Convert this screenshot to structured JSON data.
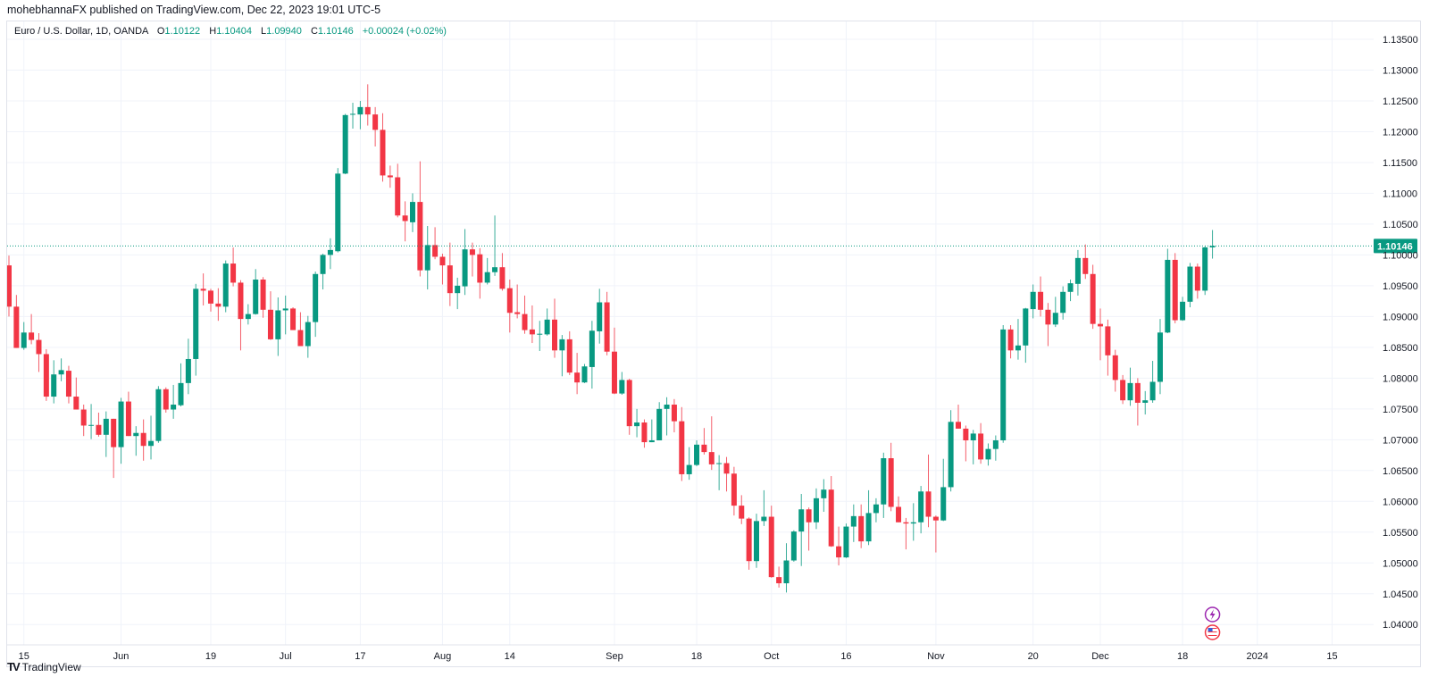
{
  "header": {
    "publish_line": "mohebhannaFX published on TradingView.com, Dec 22, 2023 19:01 UTC-5"
  },
  "legend": {
    "symbol": "Euro / U.S. Dollar, 1D, OANDA",
    "open_key": "O",
    "open": "1.10122",
    "high_key": "H",
    "high": "1.10404",
    "low_key": "L",
    "low": "1.09940",
    "close_key": "C",
    "close": "1.10146",
    "change": "+0.00024 (+0.02%)"
  },
  "brand": {
    "mark": "TV",
    "name": "TradingView"
  },
  "colors": {
    "up": "#089981",
    "down": "#F23645",
    "grid": "#f0f3fa",
    "event_purple": "#9c27b0",
    "event_flag": "#f23645"
  },
  "events": [
    {
      "icon": "lightning-icon"
    },
    {
      "icon": "us-flag-icon"
    }
  ],
  "chart_data": {
    "type": "candlestick",
    "symbol": "EURUSD",
    "interval": "1D",
    "grid": true,
    "ylim": [
      1.0367,
      1.1379
    ],
    "last_price": "1.10146",
    "yticks": [
      "1.13500",
      "1.13000",
      "1.12500",
      "1.12000",
      "1.11500",
      "1.11000",
      "1.10500",
      "1.10000",
      "1.09500",
      "1.09000",
      "1.08500",
      "1.08000",
      "1.07500",
      "1.07000",
      "1.06500",
      "1.06000",
      "1.05500",
      "1.05000",
      "1.04500",
      "1.04000"
    ],
    "xticks": [
      {
        "label": "15",
        "date": "2023-05-15"
      },
      {
        "label": "Jun",
        "date": "2023-06-01"
      },
      {
        "label": "19",
        "date": "2023-06-19"
      },
      {
        "label": "Jul",
        "date": "2023-07-03"
      },
      {
        "label": "17",
        "date": "2023-07-17"
      },
      {
        "label": "Aug",
        "date": "2023-08-01"
      },
      {
        "label": "14",
        "date": "2023-08-14"
      },
      {
        "label": "Sep",
        "date": "2023-09-01"
      },
      {
        "label": "18",
        "date": "2023-09-18"
      },
      {
        "label": "Oct",
        "date": "2023-10-02"
      },
      {
        "label": "16",
        "date": "2023-10-16"
      },
      {
        "label": "Nov",
        "date": "2023-11-01"
      },
      {
        "label": "20",
        "date": "2023-11-20"
      },
      {
        "label": "Dec",
        "date": "2023-12-01"
      },
      {
        "label": "18",
        "date": "2023-12-18"
      },
      {
        "label": "2024",
        "date": "2024-01-01"
      },
      {
        "label": "15",
        "date": "2024-01-15"
      }
    ],
    "candles_format": [
      "date",
      "open",
      "high",
      "low",
      "close"
    ],
    "candles": [
      [
        "2023-05-11",
        1.0983,
        1.0999,
        1.09,
        1.0916
      ],
      [
        "2023-05-12",
        1.0916,
        1.0935,
        1.0849,
        1.0849
      ],
      [
        "2023-05-15",
        1.0849,
        1.0891,
        1.0846,
        1.0874
      ],
      [
        "2023-05-16",
        1.0874,
        1.0904,
        1.0855,
        1.0862
      ],
      [
        "2023-05-17",
        1.0862,
        1.0873,
        1.081,
        1.0839
      ],
      [
        "2023-05-18",
        1.0839,
        1.0847,
        1.0763,
        1.077
      ],
      [
        "2023-05-19",
        1.077,
        1.0829,
        1.0759,
        1.0806
      ],
      [
        "2023-05-22",
        1.0806,
        1.0832,
        1.0795,
        1.0813
      ],
      [
        "2023-05-23",
        1.0812,
        1.082,
        1.0759,
        1.077
      ],
      [
        "2023-05-24",
        1.077,
        1.0801,
        1.0749,
        1.0749
      ],
      [
        "2023-05-25",
        1.0749,
        1.0757,
        1.0706,
        1.0723
      ],
      [
        "2023-05-26",
        1.0723,
        1.0758,
        1.0701,
        1.0724
      ],
      [
        "2023-05-29",
        1.0724,
        1.0744,
        1.0705,
        1.0708
      ],
      [
        "2023-05-30",
        1.0708,
        1.0746,
        1.0672,
        1.0734
      ],
      [
        "2023-05-31",
        1.0734,
        1.0734,
        1.0638,
        1.0688
      ],
      [
        "2023-06-01",
        1.0688,
        1.0768,
        1.0661,
        1.0762
      ],
      [
        "2023-06-02",
        1.0762,
        1.0778,
        1.0706,
        1.0706
      ],
      [
        "2023-06-05",
        1.0706,
        1.0722,
        1.0674,
        1.0711
      ],
      [
        "2023-06-06",
        1.0711,
        1.0733,
        1.0666,
        1.069
      ],
      [
        "2023-06-07",
        1.069,
        1.0739,
        1.0668,
        1.0698
      ],
      [
        "2023-06-08",
        1.0698,
        1.0787,
        1.0695,
        1.0782
      ],
      [
        "2023-06-09",
        1.0782,
        1.0785,
        1.0744,
        1.0749
      ],
      [
        "2023-06-12",
        1.0749,
        1.0789,
        1.0734,
        1.0757
      ],
      [
        "2023-06-13",
        1.0756,
        1.0824,
        1.0754,
        1.0792
      ],
      [
        "2023-06-14",
        1.0792,
        1.0864,
        1.0774,
        1.0831
      ],
      [
        "2023-06-15",
        1.0831,
        1.0953,
        1.0804,
        1.0945
      ],
      [
        "2023-06-16",
        1.0945,
        1.097,
        1.0918,
        1.0942
      ],
      [
        "2023-06-19",
        1.0942,
        1.0945,
        1.0908,
        1.0921
      ],
      [
        "2023-06-20",
        1.0921,
        1.0946,
        1.0893,
        1.0916
      ],
      [
        "2023-06-21",
        1.0916,
        1.0991,
        1.0907,
        1.0986
      ],
      [
        "2023-06-22",
        1.0986,
        1.1012,
        1.0949,
        1.0955
      ],
      [
        "2023-06-23",
        1.0955,
        1.0959,
        1.0845,
        1.0896
      ],
      [
        "2023-06-26",
        1.0896,
        1.092,
        1.0887,
        1.0904
      ],
      [
        "2023-06-27",
        1.0904,
        1.0977,
        1.0903,
        1.096
      ],
      [
        "2023-06-28",
        1.096,
        1.0964,
        1.0898,
        1.0911
      ],
      [
        "2023-06-29",
        1.0911,
        1.0941,
        1.0862,
        1.0863
      ],
      [
        "2023-06-30",
        1.0863,
        1.0931,
        1.0836,
        1.091
      ],
      [
        "2023-07-03",
        1.091,
        1.0934,
        1.0871,
        1.0913
      ],
      [
        "2023-07-04",
        1.0913,
        1.0915,
        1.0878,
        1.0878
      ],
      [
        "2023-07-05",
        1.0878,
        1.0907,
        1.0852,
        1.0852
      ],
      [
        "2023-07-06",
        1.0852,
        1.0901,
        1.0833,
        1.0891
      ],
      [
        "2023-07-07",
        1.0891,
        1.0973,
        1.0867,
        1.0969
      ],
      [
        "2023-07-10",
        1.0969,
        1.1002,
        1.0944,
        1.1
      ],
      [
        "2023-07-11",
        1.1,
        1.1027,
        1.0977,
        1.1008
      ],
      [
        "2023-07-12",
        1.1006,
        1.1141,
        1.1004,
        1.1132
      ],
      [
        "2023-07-13",
        1.1132,
        1.1229,
        1.1131,
        1.1227
      ],
      [
        "2023-07-14",
        1.1228,
        1.1247,
        1.1205,
        1.1229
      ],
      [
        "2023-07-17",
        1.1228,
        1.125,
        1.1204,
        1.124
      ],
      [
        "2023-07-18",
        1.124,
        1.1277,
        1.121,
        1.1228
      ],
      [
        "2023-07-19",
        1.1228,
        1.124,
        1.1176,
        1.1203
      ],
      [
        "2023-07-20",
        1.1203,
        1.123,
        1.1119,
        1.1129
      ],
      [
        "2023-07-21",
        1.1129,
        1.1145,
        1.1109,
        1.1126
      ],
      [
        "2023-07-24",
        1.1126,
        1.1148,
        1.1061,
        1.1064
      ],
      [
        "2023-07-25",
        1.1064,
        1.1087,
        1.1022,
        1.1055
      ],
      [
        "2023-07-26",
        1.1053,
        1.11,
        1.1037,
        1.1086
      ],
      [
        "2023-07-27",
        1.1086,
        1.1152,
        1.0965,
        1.0975
      ],
      [
        "2023-07-28",
        1.0975,
        1.1047,
        1.0944,
        1.1016
      ],
      [
        "2023-07-31",
        1.1016,
        1.1045,
        1.0993,
        1.0997
      ],
      [
        "2023-08-01",
        1.0997,
        1.1002,
        1.0952,
        1.0983
      ],
      [
        "2023-08-02",
        1.0983,
        1.102,
        1.0917,
        1.0938
      ],
      [
        "2023-08-03",
        1.0938,
        1.0963,
        1.0912,
        1.095
      ],
      [
        "2023-08-04",
        1.0949,
        1.1042,
        1.0935,
        1.1009
      ],
      [
        "2023-08-07",
        1.1009,
        1.102,
        1.0965,
        1.1
      ],
      [
        "2023-08-08",
        1.1001,
        1.1011,
        1.0929,
        1.0955
      ],
      [
        "2023-08-09",
        1.0955,
        1.0995,
        1.0952,
        1.0972
      ],
      [
        "2023-08-10",
        1.0972,
        1.1064,
        1.0966,
        1.098
      ],
      [
        "2023-08-11",
        1.098,
        1.1003,
        1.0942,
        1.0945
      ],
      [
        "2023-08-14",
        1.0946,
        1.096,
        1.0874,
        1.0906
      ],
      [
        "2023-08-15",
        1.0907,
        1.0952,
        1.0897,
        1.0904
      ],
      [
        "2023-08-16",
        1.0904,
        1.0934,
        1.0872,
        1.0878
      ],
      [
        "2023-08-17",
        1.0879,
        1.0918,
        1.0857,
        1.0871
      ],
      [
        "2023-08-18",
        1.0871,
        1.0893,
        1.0844,
        1.0872
      ],
      [
        "2023-08-21",
        1.0871,
        1.0913,
        1.0869,
        1.0895
      ],
      [
        "2023-08-22",
        1.0895,
        1.0929,
        1.0833,
        1.0845
      ],
      [
        "2023-08-23",
        1.0845,
        1.087,
        1.0803,
        1.0863
      ],
      [
        "2023-08-24",
        1.0863,
        1.0876,
        1.0805,
        1.0809
      ],
      [
        "2023-08-25",
        1.0809,
        1.0841,
        1.0774,
        1.0793
      ],
      [
        "2023-08-28",
        1.0793,
        1.0823,
        1.0792,
        1.0819
      ],
      [
        "2023-08-29",
        1.0818,
        1.0893,
        1.0783,
        1.0877
      ],
      [
        "2023-08-30",
        1.0876,
        1.0945,
        1.0856,
        1.0923
      ],
      [
        "2023-08-31",
        1.0923,
        1.094,
        1.0837,
        1.0843
      ],
      [
        "2023-09-01",
        1.0843,
        1.0882,
        1.0774,
        1.0775
      ],
      [
        "2023-09-04",
        1.0775,
        1.081,
        1.0773,
        1.0797
      ],
      [
        "2023-09-05",
        1.0797,
        1.0799,
        1.0708,
        1.0722
      ],
      [
        "2023-09-06",
        1.0722,
        1.075,
        1.0704,
        1.0728
      ],
      [
        "2023-09-07",
        1.0728,
        1.0733,
        1.0687,
        1.0696
      ],
      [
        "2023-09-08",
        1.0696,
        1.0733,
        1.0696,
        1.0699
      ],
      [
        "2023-09-11",
        1.0699,
        1.0761,
        1.0699,
        1.075
      ],
      [
        "2023-09-12",
        1.075,
        1.0769,
        1.0707,
        1.0757
      ],
      [
        "2023-09-13",
        1.0757,
        1.0766,
        1.0712,
        1.073
      ],
      [
        "2023-09-14",
        1.073,
        1.0753,
        1.0633,
        1.0644
      ],
      [
        "2023-09-15",
        1.0644,
        1.0688,
        1.0635,
        1.0659
      ],
      [
        "2023-09-18",
        1.0659,
        1.0699,
        1.0657,
        1.0692
      ],
      [
        "2023-09-19",
        1.0692,
        1.0719,
        1.0676,
        1.068
      ],
      [
        "2023-09-20",
        1.068,
        1.0738,
        1.0651,
        1.066
      ],
      [
        "2023-09-21",
        1.0662,
        1.0675,
        1.0618,
        1.0662
      ],
      [
        "2023-09-22",
        1.0662,
        1.0672,
        1.0616,
        1.0645
      ],
      [
        "2023-09-25",
        1.0645,
        1.0656,
        1.0577,
        1.0593
      ],
      [
        "2023-09-26",
        1.0593,
        1.061,
        1.0563,
        1.0572
      ],
      [
        "2023-09-27",
        1.0572,
        1.0574,
        1.0489,
        1.0503
      ],
      [
        "2023-09-28",
        1.0503,
        1.058,
        1.0492,
        1.0568
      ],
      [
        "2023-09-29",
        1.0568,
        1.0618,
        1.056,
        1.0575
      ],
      [
        "2023-10-02",
        1.0575,
        1.0593,
        1.0476,
        1.0477
      ],
      [
        "2023-10-03",
        1.0477,
        1.0494,
        1.046,
        1.0467
      ],
      [
        "2023-10-04",
        1.0467,
        1.0532,
        1.0452,
        1.0504
      ],
      [
        "2023-10-05",
        1.0504,
        1.0553,
        1.0502,
        1.0551
      ],
      [
        "2023-10-06",
        1.0551,
        1.0612,
        1.0495,
        1.0587
      ],
      [
        "2023-10-09",
        1.0587,
        1.059,
        1.052,
        1.0566
      ],
      [
        "2023-10-10",
        1.0566,
        1.0621,
        1.0555,
        1.0605
      ],
      [
        "2023-10-11",
        1.0605,
        1.0636,
        1.0583,
        1.0619
      ],
      [
        "2023-10-12",
        1.0619,
        1.0641,
        1.0526,
        1.0527
      ],
      [
        "2023-10-13",
        1.0527,
        1.0559,
        1.0496,
        1.0509
      ],
      [
        "2023-10-16",
        1.0509,
        1.0564,
        1.0508,
        1.0559
      ],
      [
        "2023-10-17",
        1.0559,
        1.0595,
        1.0534,
        1.0576
      ],
      [
        "2023-10-18",
        1.0576,
        1.0595,
        1.0524,
        1.0535
      ],
      [
        "2023-10-19",
        1.0535,
        1.0618,
        1.0529,
        1.0581
      ],
      [
        "2023-10-20",
        1.0581,
        1.0605,
        1.0566,
        1.0595
      ],
      [
        "2023-10-23",
        1.0595,
        1.0679,
        1.0573,
        1.067
      ],
      [
        "2023-10-24",
        1.067,
        1.0695,
        1.0584,
        1.0591
      ],
      [
        "2023-10-25",
        1.0591,
        1.0608,
        1.0566,
        1.0566
      ],
      [
        "2023-10-26",
        1.0566,
        1.0573,
        1.0522,
        1.0564
      ],
      [
        "2023-10-27",
        1.0564,
        1.0597,
        1.0536,
        1.0566
      ],
      [
        "2023-10-30",
        1.0566,
        1.0625,
        1.0548,
        1.0616
      ],
      [
        "2023-10-31",
        1.0616,
        1.0676,
        1.0558,
        1.0575
      ],
      [
        "2023-11-01",
        1.0575,
        1.0577,
        1.0517,
        1.0569
      ],
      [
        "2023-11-02",
        1.0569,
        1.0669,
        1.0568,
        1.0623
      ],
      [
        "2023-11-03",
        1.0623,
        1.0748,
        1.0616,
        1.0729
      ],
      [
        "2023-11-06",
        1.0729,
        1.0757,
        1.0718,
        1.0718
      ],
      [
        "2023-11-07",
        1.0718,
        1.0723,
        1.0665,
        1.0699
      ],
      [
        "2023-11-08",
        1.0699,
        1.0716,
        1.066,
        1.071
      ],
      [
        "2023-11-09",
        1.071,
        1.0727,
        1.0661,
        1.0668
      ],
      [
        "2023-11-10",
        1.0668,
        1.0694,
        1.0658,
        1.0685
      ],
      [
        "2023-11-13",
        1.0685,
        1.0707,
        1.0666,
        1.0699
      ],
      [
        "2023-11-14",
        1.0699,
        1.0886,
        1.0695,
        1.0879
      ],
      [
        "2023-11-15",
        1.0879,
        1.0886,
        1.0832,
        1.0845
      ],
      [
        "2023-11-16",
        1.0845,
        1.0896,
        1.083,
        1.0853
      ],
      [
        "2023-11-17",
        1.0853,
        1.0914,
        1.0825,
        1.0913
      ],
      [
        "2023-11-20",
        1.0912,
        1.0952,
        1.0897,
        1.094
      ],
      [
        "2023-11-21",
        1.094,
        1.0965,
        1.09,
        1.0911
      ],
      [
        "2023-11-22",
        1.0911,
        1.0922,
        1.0852,
        1.0887
      ],
      [
        "2023-11-23",
        1.0887,
        1.0932,
        1.0883,
        1.0906
      ],
      [
        "2023-11-24",
        1.0906,
        1.0949,
        1.0895,
        1.094
      ],
      [
        "2023-11-27",
        1.094,
        1.096,
        1.0925,
        1.0954
      ],
      [
        "2023-11-28",
        1.0953,
        1.1008,
        1.0934,
        1.0995
      ],
      [
        "2023-11-29",
        1.0995,
        1.1017,
        1.0961,
        1.0969
      ],
      [
        "2023-11-30",
        1.0969,
        1.0984,
        1.088,
        1.0888
      ],
      [
        "2023-12-01",
        1.0888,
        1.0913,
        1.0829,
        1.0884
      ],
      [
        "2023-12-04",
        1.0884,
        1.0895,
        1.0804,
        1.0837
      ],
      [
        "2023-12-05",
        1.0837,
        1.0846,
        1.0778,
        1.0797
      ],
      [
        "2023-12-06",
        1.0797,
        1.0805,
        1.0758,
        1.0764
      ],
      [
        "2023-12-07",
        1.0764,
        1.0817,
        1.0755,
        1.0792
      ],
      [
        "2023-12-08",
        1.0792,
        1.08,
        1.0723,
        1.076
      ],
      [
        "2023-12-11",
        1.076,
        1.0779,
        1.0741,
        1.0764
      ],
      [
        "2023-12-12",
        1.0764,
        1.0828,
        1.076,
        1.0794
      ],
      [
        "2023-12-13",
        1.0794,
        1.0896,
        1.0774,
        1.0874
      ],
      [
        "2023-12-14",
        1.0874,
        1.101,
        1.0873,
        1.0992
      ],
      [
        "2023-12-15",
        1.0992,
        1.1003,
        1.0889,
        1.0894
      ],
      [
        "2023-12-18",
        1.0894,
        1.0932,
        1.0893,
        1.0924
      ],
      [
        "2023-12-19",
        1.0924,
        1.0987,
        1.0915,
        1.0981
      ],
      [
        "2023-12-20",
        1.0981,
        1.0986,
        1.0929,
        1.0942
      ],
      [
        "2023-12-21",
        1.0942,
        1.1014,
        1.0935,
        1.10122
      ],
      [
        "2023-12-22",
        1.10122,
        1.10404,
        1.0994,
        1.10146
      ]
    ]
  }
}
